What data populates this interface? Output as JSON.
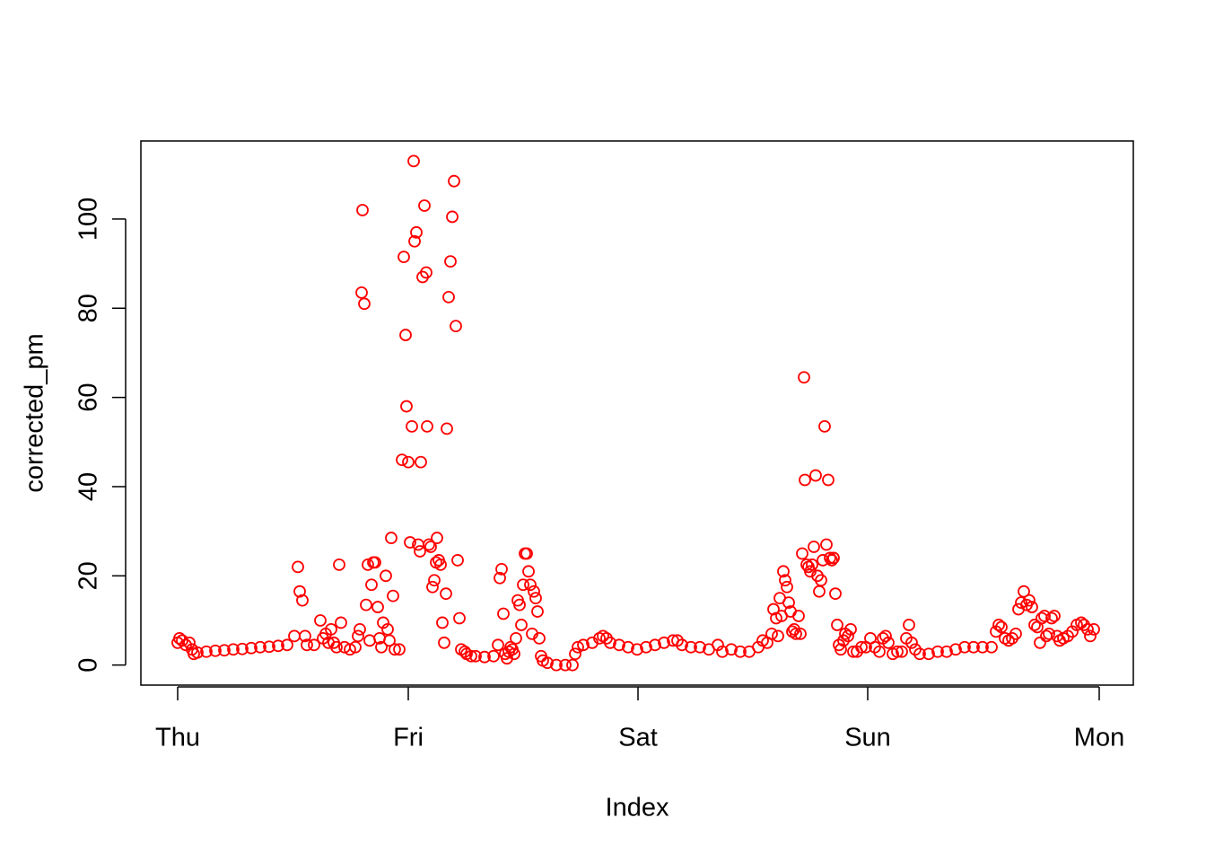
{
  "chart_data": {
    "type": "scatter",
    "x_label": "Index",
    "y_label": "corrected_pm",
    "color": "#ff0000",
    "xlim": [
      -41,
      1065
    ],
    "ylim": [
      -4.5,
      117.5
    ],
    "xticks": [
      {
        "value": 0,
        "label": "Thu"
      },
      {
        "value": 257,
        "label": "Fri"
      },
      {
        "value": 513,
        "label": "Sat"
      },
      {
        "value": 769,
        "label": "Sun"
      },
      {
        "value": 1027,
        "label": "Mon"
      }
    ],
    "yticks": [
      0,
      20,
      40,
      60,
      80,
      100
    ],
    "x": [
      0,
      2,
      5,
      9,
      13,
      16,
      18,
      22,
      32,
      42,
      52,
      62,
      72,
      82,
      92,
      102,
      112,
      122,
      130,
      134,
      136,
      139,
      142,
      144,
      152,
      159,
      162,
      165,
      168,
      171,
      174,
      177,
      180,
      182,
      186,
      192,
      198,
      201,
      203,
      205,
      206,
      208,
      210,
      212,
      214,
      216,
      218,
      220,
      223,
      225,
      227,
      229,
      232,
      234,
      236,
      238,
      240,
      242,
      247,
      250,
      252,
      254,
      255,
      257,
      259,
      261,
      263,
      264,
      266,
      268,
      270,
      271,
      273,
      275,
      277,
      278,
      280,
      282,
      284,
      286,
      288,
      289,
      291,
      293,
      295,
      297,
      299,
      300,
      302,
      304,
      306,
      308,
      310,
      312,
      314,
      316,
      320,
      322,
      327,
      332,
      342,
      352,
      357,
      359,
      361,
      363,
      365,
      367,
      369,
      371,
      373,
      375,
      377,
      379,
      381,
      383,
      385,
      387,
      389,
      391,
      393,
      395,
      397,
      399,
      401,
      403,
      405,
      407,
      412,
      422,
      432,
      440,
      443,
      446,
      452,
      462,
      470,
      474,
      478,
      482,
      492,
      502,
      512,
      522,
      532,
      542,
      552,
      557,
      562,
      572,
      582,
      592,
      602,
      607,
      617,
      627,
      637,
      647,
      652,
      657,
      662,
      664,
      667,
      669,
      671,
      673,
      675,
      677,
      679,
      681,
      683,
      685,
      687,
      689,
      692,
      694,
      696,
      698,
      699,
      701,
      703,
      705,
      707,
      709,
      711,
      713,
      715,
      717,
      719,
      721,
      723,
      725,
      727,
      729,
      731,
      733,
      735,
      737,
      739,
      742,
      744,
      747,
      750,
      753,
      757,
      762,
      767,
      772,
      777,
      782,
      786,
      789,
      792,
      797,
      802,
      807,
      812,
      815,
      818,
      822,
      827,
      837,
      847,
      857,
      867,
      877,
      887,
      897,
      907,
      912,
      915,
      918,
      922,
      926,
      930,
      934,
      937,
      940,
      943,
      946,
      949,
      952,
      955,
      958,
      961,
      963,
      966,
      968,
      971,
      974,
      977,
      980,
      983,
      987,
      992,
      997,
      1002,
      1007,
      1010,
      1014,
      1017,
      1021
    ],
    "values": [
      5,
      6,
      5.5,
      4.5,
      5,
      3.5,
      2.5,
      2.8,
      3,
      3.2,
      3.3,
      3.5,
      3.6,
      3.8,
      4,
      4.1,
      4.3,
      4.5,
      6.5,
      22,
      16.5,
      14.5,
      6.5,
      4.5,
      4.5,
      10,
      6,
      7,
      5,
      8,
      5,
      4,
      22.5,
      9.5,
      4,
      3.5,
      4,
      6.5,
      8,
      83.5,
      102,
      81,
      13.5,
      22.5,
      5.5,
      18,
      23,
      23,
      13,
      6,
      4,
      9.5,
      20,
      8,
      5.5,
      28.5,
      15.5,
      3.5,
      3.5,
      46,
      91.5,
      74,
      58,
      45.5,
      27.5,
      53.5,
      113,
      95,
      97,
      27,
      25.5,
      45.5,
      87,
      103,
      88,
      53.5,
      27,
      26.5,
      17.5,
      19,
      23,
      28.5,
      23.5,
      22.5,
      9.5,
      5,
      16,
      53,
      82.5,
      90.5,
      100.5,
      108.5,
      76,
      23.5,
      10.5,
      3.5,
      3,
      2.5,
      2,
      2,
      1.8,
      2,
      4.5,
      19.5,
      21.5,
      11.5,
      2.5,
      1.5,
      3,
      4,
      3.5,
      2.5,
      6,
      14.5,
      13.5,
      9,
      18,
      25,
      25,
      21,
      18,
      7,
      16.5,
      15,
      12,
      6,
      2,
      1,
      0.5,
      0,
      0,
      0,
      2.5,
      4,
      4.5,
      5,
      6,
      6.5,
      6,
      5,
      4.5,
      4,
      3.5,
      4,
      4.5,
      5,
      5.5,
      5.5,
      4.5,
      4,
      4,
      3.5,
      4.5,
      3,
      3.5,
      3,
      3,
      4,
      5.5,
      5,
      7,
      12.5,
      10.5,
      6.5,
      15,
      11,
      21,
      19,
      17.5,
      14,
      12,
      7.5,
      8,
      7,
      11,
      7,
      25,
      64.5,
      41.5,
      22.5,
      22,
      21,
      22.5,
      26.5,
      42.5,
      20,
      16.5,
      19,
      23.5,
      53.5,
      27,
      41.5,
      24,
      23.5,
      24,
      16,
      9,
      4.5,
      3.5,
      5.5,
      7,
      6.5,
      8,
      3,
      3,
      4,
      4,
      6,
      4,
      3,
      6,
      6.5,
      5,
      2.5,
      3,
      3,
      6,
      9,
      5,
      3.5,
      2.5,
      2.5,
      3,
      3,
      3.5,
      4,
      4,
      4,
      4,
      7.5,
      9,
      8.5,
      6,
      5.5,
      6,
      7,
      12.5,
      14,
      16.5,
      13.5,
      14.5,
      13,
      9,
      8.5,
      5,
      10.5,
      11,
      6.5,
      7,
      10.5,
      11,
      6.5,
      5.5,
      6,
      6.5,
      7.5,
      9,
      9.5,
      9,
      8,
      6.5,
      8
    ]
  }
}
